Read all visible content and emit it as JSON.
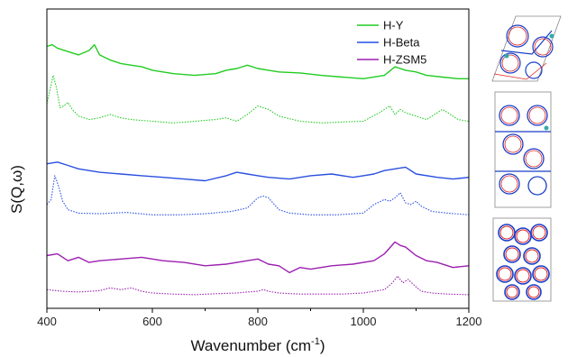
{
  "chart_data": {
    "type": "line",
    "title": "",
    "xlabel": "Wavenumber (cm",
    "xlabel_sup": "-1",
    "xlabel_tail": ")",
    "ylabel": "S(Q,ω)",
    "xlim": [
      400,
      1200
    ],
    "xticks": [
      "400",
      "600",
      "800",
      "1000",
      "1200"
    ],
    "legend_placement": "top-right",
    "grid": false,
    "insets": [
      "H-Y framework structure",
      "H-Beta framework structure",
      "H-ZSM5 framework structure"
    ],
    "colors": {
      "H-Y": "#22cc22",
      "H-Beta": "#2a4fe0",
      "H-ZSM5": "#9b1fb0"
    },
    "series": [
      {
        "name": "H-Y",
        "style": "solid",
        "offset": 6.1,
        "x": [
          400,
          410,
          420,
          440,
          460,
          480,
          490,
          500,
          520,
          540,
          560,
          580,
          600,
          640,
          680,
          720,
          740,
          760,
          780,
          800,
          820,
          840,
          880,
          920,
          960,
          1000,
          1040,
          1060,
          1080,
          1100,
          1120,
          1150,
          1180,
          1200
        ],
        "y": [
          1.0,
          1.05,
          0.95,
          0.85,
          0.75,
          0.88,
          1.05,
          0.75,
          0.6,
          0.5,
          0.45,
          0.4,
          0.3,
          0.2,
          0.15,
          0.2,
          0.3,
          0.35,
          0.45,
          0.35,
          0.3,
          0.25,
          0.22,
          0.15,
          0.1,
          0.05,
          0.15,
          0.4,
          0.3,
          0.25,
          0.15,
          0.1,
          0.05,
          0.05
        ]
      },
      {
        "name": "",
        "style": "dotted",
        "series_of": "H-Y",
        "offset": 4.8,
        "x": [
          400,
          412,
          418,
          425,
          432,
          440,
          448,
          460,
          480,
          500,
          520,
          540,
          560,
          600,
          640,
          680,
          720,
          740,
          760,
          780,
          800,
          820,
          840,
          880,
          920,
          960,
          1000,
          1030,
          1050,
          1060,
          1070,
          1080,
          1100,
          1120,
          1150,
          1180,
          1200
        ],
        "y": [
          0.6,
          1.45,
          1.1,
          0.5,
          0.55,
          0.65,
          0.45,
          0.25,
          0.15,
          0.2,
          0.3,
          0.2,
          0.15,
          0.1,
          0.05,
          0.1,
          0.15,
          0.2,
          0.1,
          0.3,
          0.55,
          0.45,
          0.25,
          0.1,
          0.05,
          0.08,
          0.1,
          0.35,
          0.55,
          0.3,
          0.45,
          0.35,
          0.25,
          0.15,
          0.45,
          0.15,
          0.1
        ]
      },
      {
        "name": "H-Beta",
        "style": "solid",
        "offset": 3.2,
        "x": [
          400,
          420,
          440,
          460,
          480,
          500,
          540,
          580,
          620,
          660,
          700,
          740,
          760,
          780,
          800,
          820,
          860,
          900,
          940,
          980,
          1000,
          1020,
          1040,
          1060,
          1080,
          1100,
          1140,
          1170,
          1200
        ],
        "y": [
          0.45,
          0.5,
          0.4,
          0.3,
          0.25,
          0.2,
          0.15,
          0.1,
          0.05,
          0.0,
          -0.05,
          0.1,
          0.2,
          0.15,
          0.1,
          0.05,
          0.0,
          0.1,
          0.15,
          0.05,
          0.1,
          0.15,
          0.25,
          0.3,
          0.35,
          0.15,
          0.05,
          0.0,
          0.05
        ]
      },
      {
        "name": "",
        "style": "dotted",
        "series_of": "H-Beta",
        "offset": 2.1,
        "x": [
          400,
          408,
          415,
          422,
          430,
          440,
          460,
          500,
          550,
          600,
          650,
          700,
          750,
          780,
          800,
          810,
          820,
          840,
          860,
          900,
          950,
          1000,
          1020,
          1040,
          1050,
          1060,
          1070,
          1080,
          1090,
          1100,
          1110,
          1130,
          1160,
          1200
        ],
        "y": [
          0.35,
          0.5,
          1.2,
          0.9,
          0.45,
          0.2,
          0.1,
          0.08,
          0.12,
          0.05,
          0.05,
          0.08,
          0.15,
          0.25,
          0.55,
          0.6,
          0.55,
          0.2,
          0.1,
          0.05,
          0.05,
          0.1,
          0.35,
          0.5,
          0.45,
          0.55,
          0.7,
          0.4,
          0.35,
          0.45,
          0.3,
          0.15,
          0.1,
          0.05
        ]
      },
      {
        "name": "H-ZSM5",
        "style": "solid",
        "offset": 0.6,
        "x": [
          400,
          420,
          440,
          460,
          480,
          500,
          540,
          580,
          620,
          660,
          700,
          740,
          780,
          800,
          820,
          840,
          860,
          880,
          900,
          940,
          980,
          1020,
          1040,
          1060,
          1070,
          1080,
          1100,
          1120,
          1140,
          1170,
          1200
        ],
        "y": [
          0.35,
          0.4,
          0.2,
          0.3,
          0.15,
          0.2,
          0.25,
          0.3,
          0.2,
          0.15,
          0.05,
          0.1,
          0.2,
          0.25,
          0.1,
          0.05,
          -0.15,
          0.0,
          -0.05,
          0.05,
          0.1,
          0.2,
          0.4,
          0.75,
          0.65,
          0.6,
          0.35,
          0.2,
          0.15,
          0.0,
          0.05
        ]
      },
      {
        "name": "",
        "style": "dotted",
        "series_of": "H-ZSM5",
        "offset": -0.2,
        "x": [
          400,
          430,
          460,
          500,
          520,
          540,
          560,
          580,
          600,
          640,
          680,
          720,
          760,
          780,
          800,
          810,
          820,
          840,
          880,
          920,
          960,
          1000,
          1040,
          1055,
          1065,
          1075,
          1085,
          1095,
          1110,
          1130,
          1160,
          1200
        ],
        "y": [
          0.15,
          0.1,
          0.08,
          0.12,
          0.2,
          0.15,
          0.2,
          0.1,
          0.05,
          0.02,
          0.0,
          0.03,
          0.05,
          0.08,
          0.1,
          0.15,
          0.1,
          0.05,
          0.02,
          0.02,
          0.02,
          0.05,
          0.15,
          0.35,
          0.55,
          0.35,
          0.45,
          0.3,
          0.1,
          0.05,
          0.02,
          0.0
        ]
      }
    ]
  }
}
